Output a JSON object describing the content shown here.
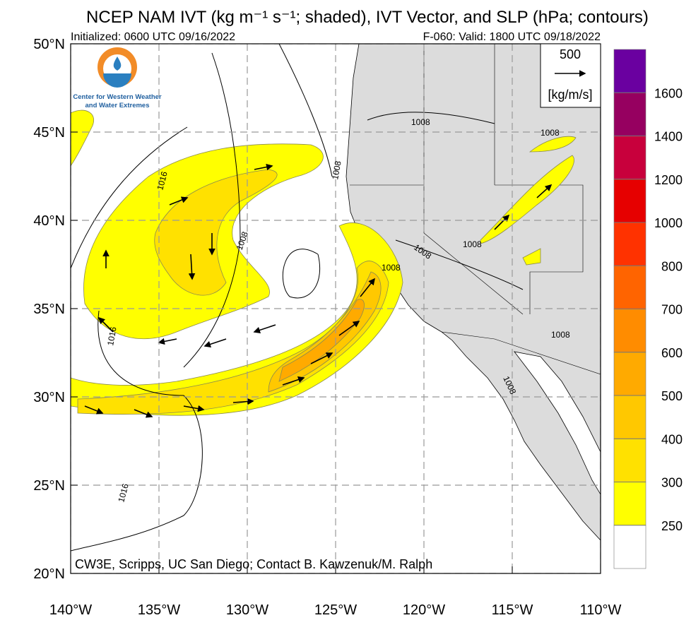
{
  "header": {
    "title": "NCEP NAM IVT (kg m⁻¹ s⁻¹; shaded), IVT Vector, and SLP (hPa; contours)",
    "initialized": "Initialized: 0600 UTC 09/16/2022",
    "valid": "F-060: Valid: 1800 UTC 09/18/2022"
  },
  "logo": {
    "lines": [
      "Center for Western Weather",
      "and Water Extremes"
    ]
  },
  "map": {
    "lon_range": [
      -140,
      -110
    ],
    "lat_range": [
      20,
      50
    ],
    "lon_ticks": [
      {
        "value": -140,
        "label": "140°W"
      },
      {
        "value": -135,
        "label": "135°W"
      },
      {
        "value": -130,
        "label": "130°W"
      },
      {
        "value": -125,
        "label": "125°W"
      },
      {
        "value": -120,
        "label": "120°W"
      },
      {
        "value": -115,
        "label": "115°W"
      },
      {
        "value": -110,
        "label": "110°W"
      }
    ],
    "lat_ticks": [
      {
        "value": 50,
        "label": "50°N"
      },
      {
        "value": 45,
        "label": "45°N"
      },
      {
        "value": 40,
        "label": "40°N"
      },
      {
        "value": 35,
        "label": "35°N"
      },
      {
        "value": 30,
        "label": "30°N"
      },
      {
        "value": 25,
        "label": "25°N"
      },
      {
        "value": 20,
        "label": "20°N"
      }
    ],
    "contour_labels": [
      "1016",
      "1008",
      "1008",
      "1008",
      "1008",
      "1008",
      "1008",
      "1008",
      "1016",
      "1016",
      "1008",
      "1008"
    ],
    "credit": "CW3E, Scripps, UC San Diego; Contact B. Kawzenuk/M. Ralph"
  },
  "vector_legend": {
    "magnitude": "500",
    "units": "[kg/m/s]"
  },
  "colorbar": {
    "levels": [
      250,
      300,
      400,
      500,
      600,
      700,
      800,
      1000,
      1200,
      1400,
      1600
    ],
    "colors": [
      "#ffffff",
      "#ffff00",
      "#ffe100",
      "#ffc800",
      "#ffaa00",
      "#ff8c00",
      "#ff6400",
      "#ff3200",
      "#e60000",
      "#c8003c",
      "#960060",
      "#6a00a0"
    ]
  }
}
